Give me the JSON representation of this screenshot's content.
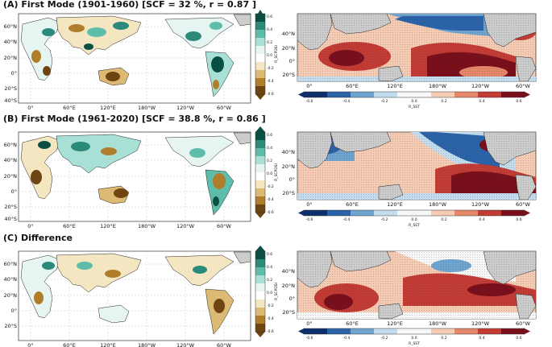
{
  "panels": [
    {
      "id": "A",
      "title": "(A) First Mode (1901-1960) [SCF = 32 %, r = 0.87 ]"
    },
    {
      "id": "B",
      "title": "(B) First Mode (1961-2020) [SCF = 38.8 %, r = 0.86 ]"
    },
    {
      "id": "C",
      "title": "(C) Difference"
    }
  ],
  "left_map": {
    "lat_labels": [
      "60°N",
      "40°N",
      "20°N",
      "0°",
      "20°S",
      "40°S"
    ],
    "lon_labels": [
      "0°",
      "60°E",
      "120°E",
      "180°W",
      "120°W",
      "60°W"
    ],
    "colorbar_ticks": [
      "0.6",
      "0.4",
      "0.2",
      "0.0",
      "-0.2",
      "-0.4",
      "-0.6"
    ],
    "colorbar_label": "R_SCPDSI",
    "colors": [
      "#0b4f44",
      "#2b8a7a",
      "#5ebcaa",
      "#a9e0d5",
      "#e6f5f1",
      "#ffffff",
      "#f3e6c1",
      "#ddba73",
      "#b07d2b",
      "#6e4512"
    ]
  },
  "right_map": {
    "lat_labels": [
      "40°N",
      "20°N",
      "0°",
      "20°S"
    ],
    "lon_labels": [
      "0°",
      "60°E",
      "120°E",
      "180°W",
      "120°W",
      "60°W"
    ],
    "colorbar_ticks": [
      "-0.6",
      "-0.4",
      "-0.2",
      "0.0",
      "0.2",
      "0.4",
      "0.6"
    ],
    "colorbar_label": "R_SST",
    "colors": [
      "#0d2f6b",
      "#2b63a8",
      "#6fa4d0",
      "#c3dcee",
      "#f7f7f7",
      "#f6cbb3",
      "#e4876b",
      "#c23b34",
      "#7a0f1c"
    ]
  }
}
